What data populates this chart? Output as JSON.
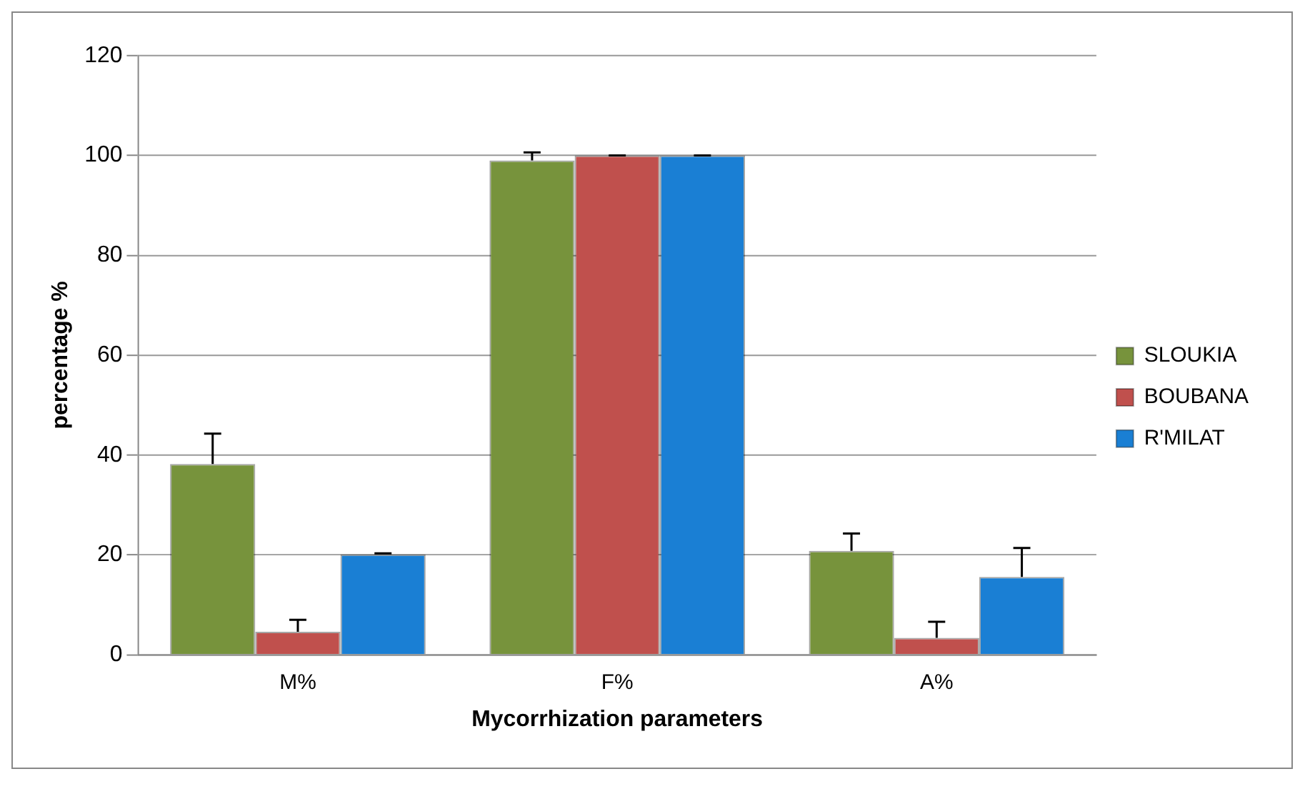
{
  "chart_data": {
    "type": "bar",
    "xlabel": "Mycorrhization parameters",
    "ylabel": "percentage %",
    "categories": [
      "M%",
      "F%",
      "A%"
    ],
    "series": [
      {
        "name": "SLOUKIA",
        "color": "#77933c",
        "values": [
          38.2,
          99,
          20.8
        ],
        "errors": [
          [
            38.2,
            44.3
          ],
          [
            99,
            100.6
          ],
          [
            20.8,
            24.3
          ]
        ]
      },
      {
        "name": "BOUBANA",
        "color": "#c0504d",
        "values": [
          4.6,
          100,
          3.4
        ],
        "errors": [
          [
            4.6,
            7
          ],
          [
            100,
            100
          ],
          [
            3.4,
            6.6
          ]
        ]
      },
      {
        "name": "R'MILAT",
        "color": "#1a7fd4",
        "values": [
          20.1,
          100,
          15.6
        ],
        "errors": [
          [
            20.1,
            20.3
          ],
          [
            100,
            100
          ],
          [
            15.6,
            21.4
          ]
        ]
      }
    ],
    "ylim": [
      0,
      120
    ],
    "yticks": [
      0,
      20,
      40,
      60,
      80,
      100,
      120
    ],
    "grid": "y",
    "legend": "right"
  }
}
